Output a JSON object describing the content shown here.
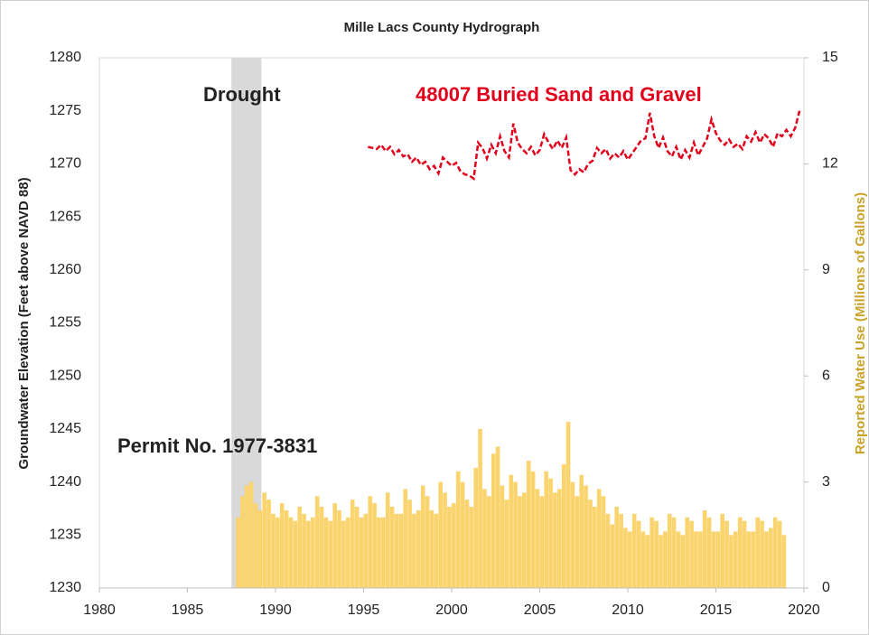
{
  "chart_data": {
    "type": "combo",
    "title": "Mille Lacs County Hydrograph",
    "ylabel": "Groundwater Elevation (Feet above NAVD 88)",
    "y2label": "Reported Water Use (Millions of Gallons)",
    "y2label_color": "#c9a227",
    "xlim": [
      1980,
      2020
    ],
    "xticks": [
      1980,
      1985,
      1990,
      1995,
      2000,
      2005,
      2010,
      2015,
      2020
    ],
    "ylim": [
      1230,
      1280
    ],
    "yticks": [
      1230,
      1235,
      1240,
      1245,
      1250,
      1255,
      1260,
      1265,
      1270,
      1275,
      1280
    ],
    "y2lim": [
      0,
      15
    ],
    "y2ticks": [
      0,
      3,
      6,
      9,
      12,
      15
    ],
    "grid": false,
    "shaded_regions": [
      {
        "label": "Drought",
        "x": [
          1987.5,
          1989.2
        ],
        "color": "#d9d9d9"
      }
    ],
    "series": [
      {
        "name": "48007 Buried Sand and Gravel",
        "type": "line",
        "color": "#e3001b",
        "dashed": true,
        "x": [
          1995.25,
          1995.5,
          1995.75,
          1996,
          1996.25,
          1996.5,
          1996.75,
          1997,
          1997.25,
          1997.5,
          1997.75,
          1998,
          1998.25,
          1998.5,
          1998.75,
          1999,
          1999.25,
          1999.5,
          1999.75,
          2000,
          2000.25,
          2000.5,
          2000.75,
          2001,
          2001.25,
          2001.5,
          2001.75,
          2002,
          2002.25,
          2002.5,
          2002.75,
          2003,
          2003.25,
          2003.5,
          2003.75,
          2004,
          2004.25,
          2004.5,
          2004.75,
          2005,
          2005.25,
          2005.5,
          2005.75,
          2006,
          2006.25,
          2006.5,
          2006.75,
          2007,
          2007.25,
          2007.5,
          2007.75,
          2008,
          2008.25,
          2008.5,
          2008.75,
          2009,
          2009.25,
          2009.5,
          2009.75,
          2010,
          2010.25,
          2010.5,
          2010.75,
          2011,
          2011.25,
          2011.5,
          2011.75,
          2012,
          2012.25,
          2012.5,
          2012.75,
          2013,
          2013.25,
          2013.5,
          2013.75,
          2014,
          2014.25,
          2014.5,
          2014.75,
          2015,
          2015.25,
          2015.5,
          2015.75,
          2016,
          2016.25,
          2016.5,
          2016.75,
          2017,
          2017.25,
          2017.5,
          2017.75,
          2018,
          2018.25,
          2018.5,
          2018.75,
          2019,
          2019.25,
          2019.5,
          2019.75
        ],
        "values": [
          1271.6,
          1271.5,
          1271.4,
          1271.8,
          1271.2,
          1271.6,
          1270.9,
          1271.3,
          1270.7,
          1270.9,
          1270.2,
          1270.6,
          1269.9,
          1270.2,
          1269.5,
          1269.8,
          1269.1,
          1270.6,
          1270.2,
          1269.8,
          1270.1,
          1269.3,
          1269.0,
          1268.9,
          1268.6,
          1272.0,
          1271.5,
          1270.5,
          1271.8,
          1271.0,
          1272.6,
          1271.2,
          1270.6,
          1273.8,
          1272.0,
          1271.4,
          1271.0,
          1271.6,
          1270.8,
          1271.3,
          1272.8,
          1272.0,
          1271.4,
          1272.2,
          1271.5,
          1272.5,
          1269.4,
          1269.0,
          1269.5,
          1269.2,
          1270.0,
          1270.3,
          1271.5,
          1271.0,
          1271.4,
          1270.5,
          1271.0,
          1270.6,
          1271.2,
          1270.4,
          1271.0,
          1271.6,
          1272.2,
          1272.4,
          1274.8,
          1272.6,
          1271.5,
          1272.5,
          1271.2,
          1270.7,
          1271.6,
          1270.4,
          1271.3,
          1270.6,
          1272.0,
          1270.8,
          1271.6,
          1272.4,
          1274.2,
          1272.9,
          1272.2,
          1271.8,
          1272.3,
          1271.6,
          1271.9,
          1271.4,
          1272.6,
          1272.1,
          1273.0,
          1272.0,
          1272.8,
          1272.4,
          1271.6,
          1272.9,
          1272.6,
          1273.2,
          1272.6,
          1273.4,
          1275.0
        ]
      },
      {
        "name": "Permit No. 1977-3831",
        "type": "bar",
        "axis": "y2",
        "color": "#fad46e",
        "x": [
          1987.75,
          1988,
          1988.25,
          1988.5,
          1988.75,
          1989,
          1989.25,
          1989.5,
          1989.75,
          1990,
          1990.25,
          1990.5,
          1990.75,
          1991,
          1991.25,
          1991.5,
          1991.75,
          1992,
          1992.25,
          1992.5,
          1992.75,
          1993,
          1993.25,
          1993.5,
          1993.75,
          1994,
          1994.25,
          1994.5,
          1994.75,
          1995,
          1995.25,
          1995.5,
          1995.75,
          1996,
          1996.25,
          1996.5,
          1996.75,
          1997,
          1997.25,
          1997.5,
          1997.75,
          1998,
          1998.25,
          1998.5,
          1998.75,
          1999,
          1999.25,
          1999.5,
          1999.75,
          2000,
          2000.25,
          2000.5,
          2000.75,
          2001,
          2001.25,
          2001.5,
          2001.75,
          2002,
          2002.25,
          2002.5,
          2002.75,
          2003,
          2003.25,
          2003.5,
          2003.75,
          2004,
          2004.25,
          2004.5,
          2004.75,
          2005,
          2005.25,
          2005.5,
          2005.75,
          2006,
          2006.25,
          2006.5,
          2006.75,
          2007,
          2007.25,
          2007.5,
          2007.75,
          2008,
          2008.25,
          2008.5,
          2008.75,
          2009,
          2009.25,
          2009.5,
          2009.75,
          2010,
          2010.25,
          2010.5,
          2010.75,
          2011,
          2011.25,
          2011.5,
          2011.75,
          2012,
          2012.25,
          2012.5,
          2012.75,
          2013,
          2013.25,
          2013.5,
          2013.75,
          2014,
          2014.25,
          2014.5,
          2014.75,
          2015,
          2015.25,
          2015.5,
          2015.75,
          2016,
          2016.25,
          2016.5,
          2016.75,
          2017,
          2017.25,
          2017.5,
          2017.75,
          2018,
          2018.25,
          2018.5,
          2018.75
        ],
        "values": [
          2.0,
          2.6,
          2.9,
          3.0,
          2.4,
          2.2,
          2.7,
          2.5,
          2.1,
          2.0,
          2.4,
          2.2,
          2.0,
          1.9,
          2.3,
          2.1,
          1.9,
          2.0,
          2.6,
          2.3,
          2.0,
          1.9,
          2.4,
          2.2,
          1.9,
          2.0,
          2.5,
          2.3,
          2.0,
          2.1,
          2.6,
          2.4,
          2.0,
          2.0,
          2.7,
          2.3,
          2.1,
          2.1,
          2.8,
          2.5,
          2.1,
          2.2,
          2.9,
          2.6,
          2.2,
          2.1,
          3.0,
          2.7,
          2.3,
          2.4,
          3.3,
          3.0,
          2.5,
          2.3,
          3.4,
          4.5,
          2.8,
          2.6,
          3.8,
          4.0,
          2.9,
          2.5,
          3.2,
          3.0,
          2.6,
          2.7,
          3.6,
          3.3,
          2.8,
          2.6,
          3.3,
          3.1,
          2.7,
          2.8,
          3.5,
          4.7,
          3.0,
          2.6,
          3.2,
          2.9,
          2.5,
          2.3,
          2.8,
          2.6,
          2.1,
          1.8,
          2.3,
          2.1,
          1.7,
          1.6,
          2.1,
          1.9,
          1.6,
          1.5,
          2.0,
          1.9,
          1.5,
          1.6,
          2.1,
          2.0,
          1.6,
          1.5,
          2.0,
          1.9,
          1.6,
          1.6,
          2.2,
          2.0,
          1.6,
          1.6,
          2.1,
          1.9,
          1.5,
          1.6,
          2.0,
          1.9,
          1.6,
          1.6,
          2.0,
          1.9,
          1.6,
          1.7,
          2.0,
          1.9,
          1.5
        ]
      }
    ]
  }
}
